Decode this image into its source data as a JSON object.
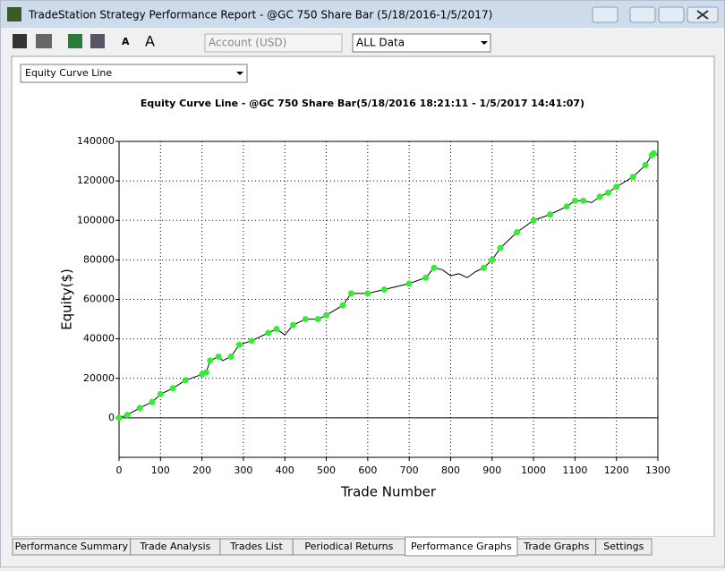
{
  "window": {
    "title": "TradeStation Strategy Performance Report - @GC 750 Share Bar (5/18/2016-1/5/2017)"
  },
  "toolbar": {
    "account": "Account (USD)",
    "range": "ALL Data"
  },
  "view_select": "Equity Curve Line",
  "tabs": [
    "Performance Summary",
    "Trade Analysis",
    "Trades List",
    "Periodical Returns",
    "Performance Graphs",
    "Trade Graphs",
    "Settings"
  ],
  "active_tab": 4,
  "chart_data": {
    "type": "line",
    "title": "Equity Curve Line - @GC 750 Share Bar(5/18/2016 18:21:11 - 1/5/2017 14:41:07)",
    "x_label": "Trade Number",
    "y_label": "Equity($)",
    "x": [
      0,
      20,
      50,
      80,
      100,
      130,
      160,
      200,
      210,
      220,
      240,
      250,
      270,
      290,
      320,
      360,
      380,
      400,
      420,
      450,
      480,
      500,
      540,
      560,
      600,
      640,
      700,
      740,
      760,
      780,
      800,
      820,
      840,
      860,
      880,
      900,
      920,
      960,
      1000,
      1040,
      1080,
      1100,
      1120,
      1140,
      1160,
      1180,
      1200,
      1240,
      1270,
      1285,
      1290,
      1300
    ],
    "values": [
      0,
      1500,
      5000,
      8000,
      12000,
      15000,
      19000,
      22000,
      23000,
      29000,
      31000,
      29000,
      31000,
      37000,
      39000,
      43000,
      45000,
      42000,
      47000,
      50000,
      50000,
      52000,
      57000,
      63000,
      63000,
      65000,
      68000,
      71000,
      76000,
      75000,
      72000,
      73000,
      71000,
      74000,
      76000,
      80000,
      86000,
      94000,
      100000,
      103000,
      107000,
      110000,
      110000,
      109000,
      112000,
      114000,
      117000,
      122000,
      128000,
      133000,
      134000,
      133000
    ],
    "color": "#000000",
    "marker_color": "#33ee33",
    "xlim": [
      0,
      1300
    ],
    "xticks": [
      0,
      100,
      200,
      300,
      400,
      500,
      600,
      700,
      800,
      900,
      1000,
      1100,
      1200,
      1300
    ],
    "ylim": [
      -20000,
      140000
    ],
    "yticks": [
      0,
      20000,
      40000,
      60000,
      80000,
      100000,
      120000,
      140000
    ],
    "grid": true
  }
}
